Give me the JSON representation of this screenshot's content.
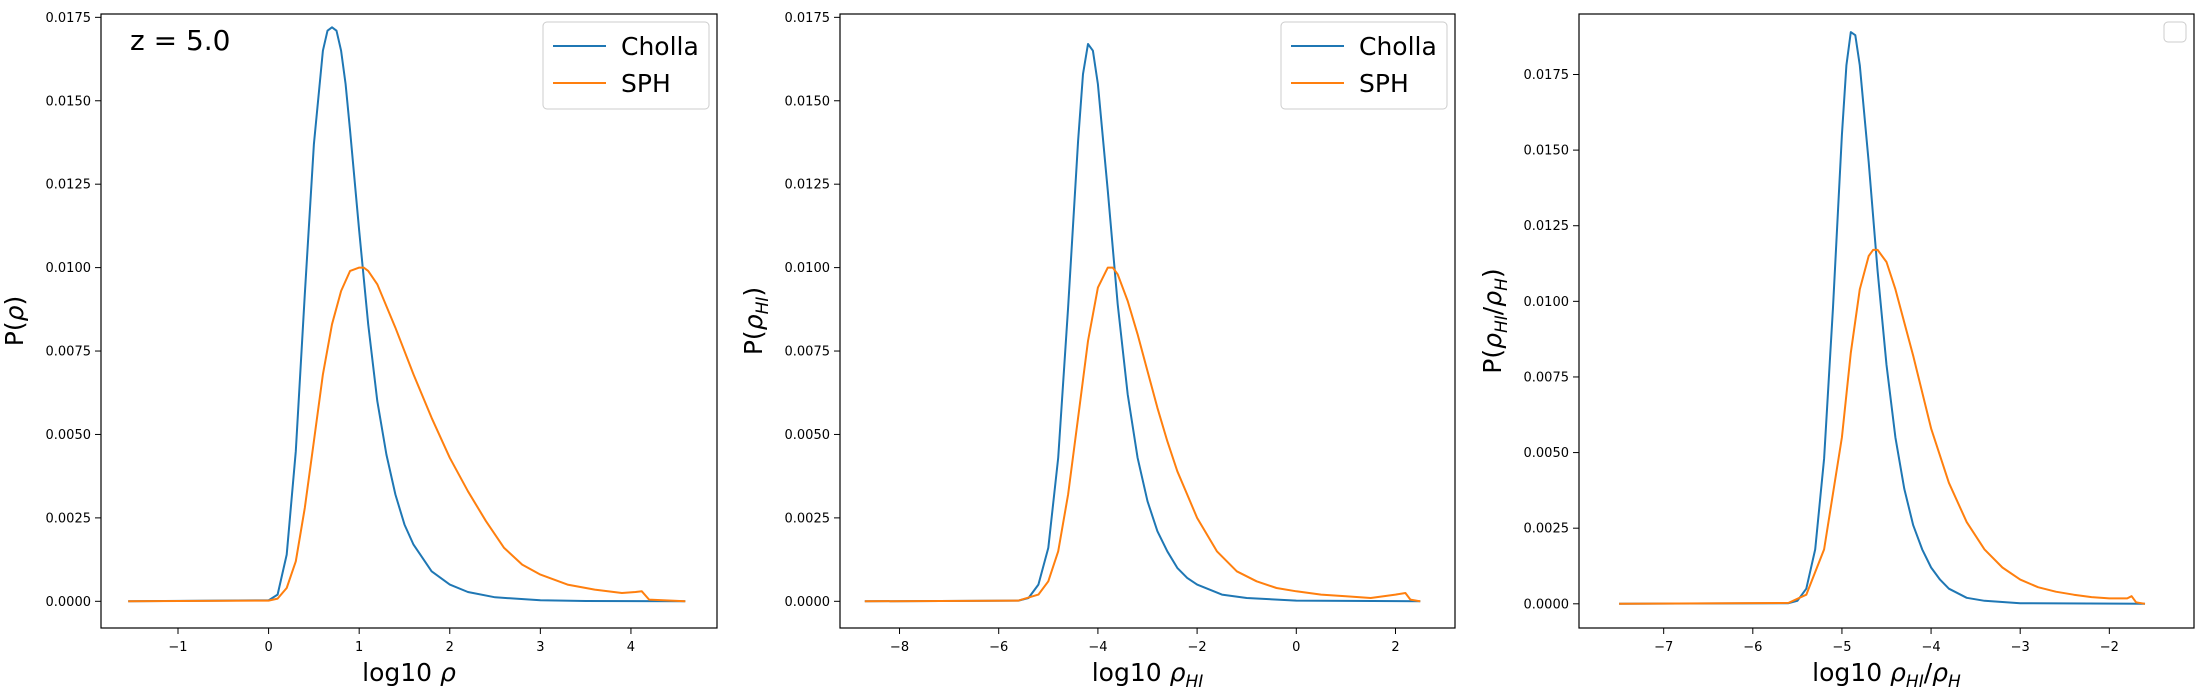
{
  "colors": {
    "cholla": "#1f77b4",
    "sph": "#ff7f0e"
  },
  "chart_data": [
    {
      "type": "line",
      "annotation": "z = 5.0",
      "ylabel": "P(ρ)",
      "xlabel": "log10  ρ",
      "xlim": [
        -1.85,
        4.95
      ],
      "ylim": [
        -0.0008,
        0.0176
      ],
      "xticks": [
        -1,
        0,
        1,
        2,
        3,
        4
      ],
      "yticks": [
        0.0,
        0.0025,
        0.005,
        0.0075,
        0.01,
        0.0125,
        0.015,
        0.0175
      ],
      "ytick_labels": [
        "0.0000",
        "0.0025",
        "0.0050",
        "0.0075",
        "0.0100",
        "0.0125",
        "0.0150",
        "0.0175"
      ],
      "legend": {
        "placement": "top-right",
        "entries": [
          "Cholla",
          "SPH"
        ]
      },
      "series": [
        {
          "name": "Cholla",
          "x": [
            -1.55,
            0.0,
            0.1,
            0.2,
            0.3,
            0.4,
            0.5,
            0.6,
            0.65,
            0.7,
            0.75,
            0.8,
            0.85,
            0.9,
            1.0,
            1.1,
            1.2,
            1.3,
            1.4,
            1.5,
            1.6,
            1.8,
            2.0,
            2.2,
            2.5,
            3.0,
            3.5,
            4.6
          ],
          "y": [
            0,
            3e-05,
            0.0002,
            0.0014,
            0.0045,
            0.0092,
            0.0137,
            0.0165,
            0.0171,
            0.0172,
            0.0171,
            0.0165,
            0.0155,
            0.0141,
            0.0111,
            0.0083,
            0.006,
            0.0044,
            0.0032,
            0.0023,
            0.0017,
            0.0009,
            0.0005,
            0.00028,
            0.00012,
            3e-05,
            1e-05,
            0
          ]
        },
        {
          "name": "SPH",
          "x": [
            -1.55,
            0.0,
            0.1,
            0.2,
            0.3,
            0.4,
            0.5,
            0.6,
            0.7,
            0.8,
            0.9,
            1.0,
            1.05,
            1.1,
            1.2,
            1.4,
            1.6,
            1.8,
            2.0,
            2.2,
            2.4,
            2.6,
            2.8,
            3.0,
            3.3,
            3.6,
            3.9,
            4.05,
            4.12,
            4.2,
            4.6
          ],
          "y": [
            0,
            2e-05,
            8e-05,
            0.0004,
            0.0012,
            0.0028,
            0.0048,
            0.0068,
            0.0083,
            0.0093,
            0.0099,
            0.01,
            0.01,
            0.0099,
            0.0095,
            0.0082,
            0.0068,
            0.0055,
            0.0043,
            0.0033,
            0.0024,
            0.0016,
            0.0011,
            0.0008,
            0.0005,
            0.00035,
            0.00025,
            0.00028,
            0.0003,
            5e-05,
            0
          ]
        }
      ]
    },
    {
      "type": "line",
      "ylabel": "P(ρHI)",
      "xlabel": "log10  ρHI",
      "xlim": [
        -9.2,
        3.2
      ],
      "ylim": [
        -0.0008,
        0.0176
      ],
      "xticks": [
        -8,
        -6,
        -4,
        -2,
        0,
        2
      ],
      "yticks": [
        0.0,
        0.0025,
        0.005,
        0.0075,
        0.01,
        0.0125,
        0.015,
        0.0175
      ],
      "ytick_labels": [
        "0.0000",
        "0.0025",
        "0.0050",
        "0.0075",
        "0.0100",
        "0.0125",
        "0.0150",
        "0.0175"
      ],
      "legend": {
        "placement": "top-right",
        "entries": [
          "Cholla",
          "SPH"
        ]
      },
      "series": [
        {
          "name": "Cholla",
          "x": [
            -8.7,
            -5.6,
            -5.4,
            -5.2,
            -5.0,
            -4.8,
            -4.6,
            -4.4,
            -4.3,
            -4.2,
            -4.1,
            -4.0,
            -3.8,
            -3.6,
            -3.4,
            -3.2,
            -3.0,
            -2.8,
            -2.6,
            -2.4,
            -2.2,
            -2.0,
            -1.5,
            -1.0,
            0.0,
            2.5
          ],
          "y": [
            0,
            2e-05,
            0.0001,
            0.0005,
            0.0016,
            0.0043,
            0.0088,
            0.0138,
            0.0158,
            0.0167,
            0.0165,
            0.0155,
            0.0123,
            0.0089,
            0.0062,
            0.0043,
            0.003,
            0.0021,
            0.0015,
            0.001,
            0.0007,
            0.0005,
            0.0002,
            0.0001,
            2e-05,
            0
          ]
        },
        {
          "name": "SPH",
          "x": [
            -8.7,
            -5.6,
            -5.2,
            -5.0,
            -4.8,
            -4.6,
            -4.4,
            -4.2,
            -4.0,
            -3.8,
            -3.7,
            -3.6,
            -3.4,
            -3.2,
            -3.0,
            -2.8,
            -2.6,
            -2.4,
            -2.2,
            -2.0,
            -1.6,
            -1.2,
            -0.8,
            -0.4,
            0.0,
            0.5,
            1.0,
            1.5,
            2.0,
            2.2,
            2.3,
            2.5
          ],
          "y": [
            0,
            2e-05,
            0.0002,
            0.0006,
            0.0015,
            0.0032,
            0.0055,
            0.0078,
            0.0094,
            0.01,
            0.01,
            0.0098,
            0.009,
            0.008,
            0.0069,
            0.0058,
            0.0048,
            0.0039,
            0.0032,
            0.0025,
            0.0015,
            0.0009,
            0.0006,
            0.0004,
            0.0003,
            0.0002,
            0.00015,
            0.0001,
            0.0002,
            0.00025,
            5e-05,
            0
          ]
        }
      ]
    },
    {
      "type": "line",
      "ylabel": "P(ρHI/ρH)",
      "xlabel": "log10  ρHI/ρH",
      "xlim": [
        -7.95,
        -1.05
      ],
      "ylim": [
        -0.0008,
        0.0195
      ],
      "xticks": [
        -7,
        -6,
        -5,
        -4,
        -3,
        -2
      ],
      "yticks": [
        0.0,
        0.0025,
        0.005,
        0.0075,
        0.01,
        0.0125,
        0.015,
        0.0175
      ],
      "ytick_labels": [
        "0.0000",
        "0.0025",
        "0.0050",
        "0.0075",
        "0.0100",
        "0.0125",
        "0.0150",
        "0.0175"
      ],
      "legend": {
        "placement": "top-right",
        "entries": []
      },
      "series": [
        {
          "name": "Cholla",
          "x": [
            -7.5,
            -5.6,
            -5.5,
            -5.4,
            -5.3,
            -5.2,
            -5.1,
            -5.0,
            -4.95,
            -4.9,
            -4.85,
            -4.8,
            -4.7,
            -4.6,
            -4.5,
            -4.4,
            -4.3,
            -4.2,
            -4.1,
            -4.0,
            -3.9,
            -3.8,
            -3.6,
            -3.4,
            -3.0,
            -1.6
          ],
          "y": [
            0,
            2e-05,
            0.0001,
            0.0005,
            0.0018,
            0.0048,
            0.0098,
            0.0155,
            0.0178,
            0.0189,
            0.0188,
            0.0178,
            0.0146,
            0.011,
            0.0079,
            0.0055,
            0.0038,
            0.0026,
            0.0018,
            0.0012,
            0.0008,
            0.0005,
            0.0002,
            0.0001,
            2e-05,
            0
          ]
        },
        {
          "name": "SPH",
          "x": [
            -7.5,
            -5.6,
            -5.4,
            -5.2,
            -5.0,
            -4.9,
            -4.8,
            -4.7,
            -4.65,
            -4.6,
            -4.5,
            -4.4,
            -4.2,
            -4.0,
            -3.8,
            -3.6,
            -3.4,
            -3.2,
            -3.0,
            -2.8,
            -2.6,
            -2.4,
            -2.2,
            -2.0,
            -1.8,
            -1.75,
            -1.7,
            -1.6
          ],
          "y": [
            0,
            3e-05,
            0.0003,
            0.0018,
            0.0055,
            0.0083,
            0.0104,
            0.0115,
            0.0117,
            0.0117,
            0.0113,
            0.0104,
            0.0082,
            0.0058,
            0.004,
            0.0027,
            0.0018,
            0.0012,
            0.0008,
            0.00055,
            0.0004,
            0.0003,
            0.00022,
            0.00018,
            0.00018,
            0.00025,
            5e-05,
            0
          ]
        }
      ]
    }
  ]
}
